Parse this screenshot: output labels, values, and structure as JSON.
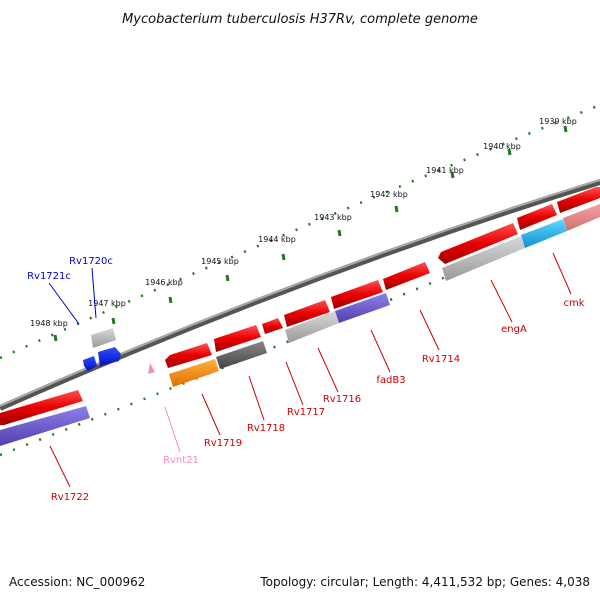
{
  "title": "Mycobacterium tuberculosis H37Rv, complete genome",
  "footer": {
    "accession": "Accession: NC_000962",
    "topology": "Topology: circular; Length: 4,411,532 bp; Genes: 4,038"
  },
  "ticks": [
    "1939 kbp",
    "1940 kbp",
    "1941 kbp",
    "1942 kbp",
    "1943 kbp",
    "1944 kbp",
    "1945 kbp",
    "1946 kbp",
    "1947 kbp",
    "1948 kbp"
  ],
  "genes": [
    {
      "label": "Rv1722"
    },
    {
      "label": "Rv1721c"
    },
    {
      "label": "Rv1720c"
    },
    {
      "label": "Rvnt21"
    },
    {
      "label": "Rv1719"
    },
    {
      "label": "Rv1718"
    },
    {
      "label": "Rv1717"
    },
    {
      "label": "Rv1716"
    },
    {
      "label": "fadB3"
    },
    {
      "label": "Rv1714"
    },
    {
      "label": "engA"
    },
    {
      "label": "cmk"
    }
  ],
  "colors": {
    "backbone": "#7a7a7a",
    "tick_dots": "#1e7a1e",
    "gene_forward_red": "#e00000",
    "gene_label_red": "#cc0000",
    "gene_label_blue": "#0000cc",
    "rna_pink": "#f08cc0",
    "cds_purple": "#6a5acd",
    "cds_gray": "#a0a0a0",
    "cds_dark": "#555555",
    "cds_orange": "#ff8c00",
    "cds_cyan": "#1eb4e8"
  }
}
